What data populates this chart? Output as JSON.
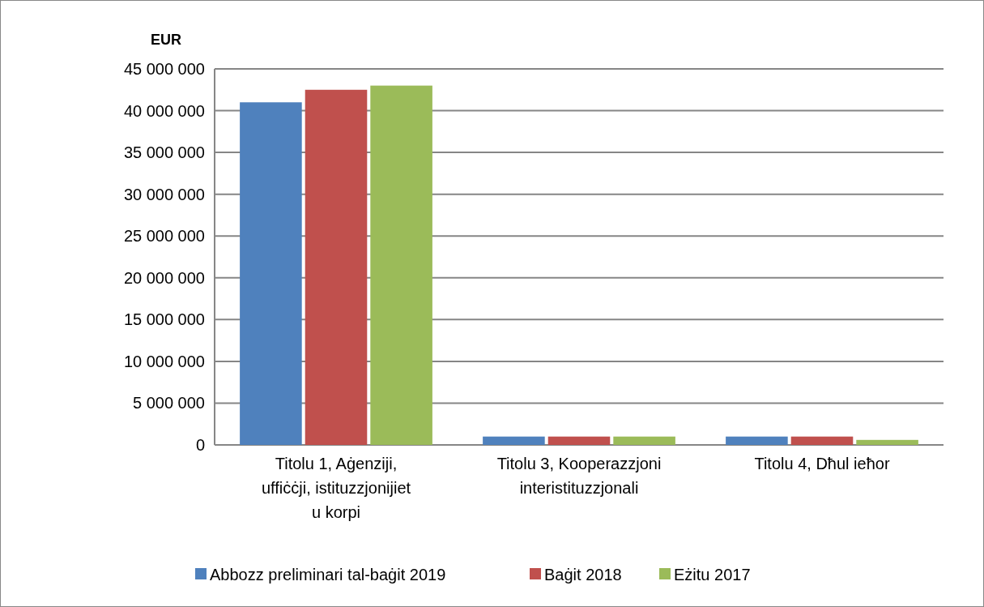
{
  "chart_data": {
    "type": "bar",
    "ylabel": "EUR",
    "categories": [
      "Titolu 1, Aġenziji, uffiċċji, istituzzjonijiet u korpi",
      "Titolu 3, Kooperazzjoni interistituzzjonali",
      "Titolu 4, Dħul ieħor"
    ],
    "series": [
      {
        "name": "Abbozz preliminari tal-baġit 2019",
        "color": "#4f81bd",
        "values": [
          41000000,
          1000000,
          1000000
        ]
      },
      {
        "name": "Baġit 2018",
        "color": "#c0504d",
        "values": [
          42500000,
          1000000,
          1000000
        ]
      },
      {
        "name": "Eżitu 2017",
        "color": "#9bbb59",
        "values": [
          43000000,
          1000000,
          600000
        ]
      }
    ],
    "ylim": [
      0,
      45000000
    ],
    "yticks": [
      {
        "value": 0,
        "label": "0"
      },
      {
        "value": 5000000,
        "label": "5 000 000"
      },
      {
        "value": 10000000,
        "label": "10 000 000"
      },
      {
        "value": 15000000,
        "label": "15 000 000"
      },
      {
        "value": 20000000,
        "label": "20 000 000"
      },
      {
        "value": 25000000,
        "label": "25 000 000"
      },
      {
        "value": 30000000,
        "label": "30 000 000"
      },
      {
        "value": 35000000,
        "label": "35 000 000"
      },
      {
        "value": 40000000,
        "label": "40 000 000"
      },
      {
        "value": 45000000,
        "label": "45 000 000"
      }
    ],
    "grid": "y",
    "legend": "bottom"
  }
}
